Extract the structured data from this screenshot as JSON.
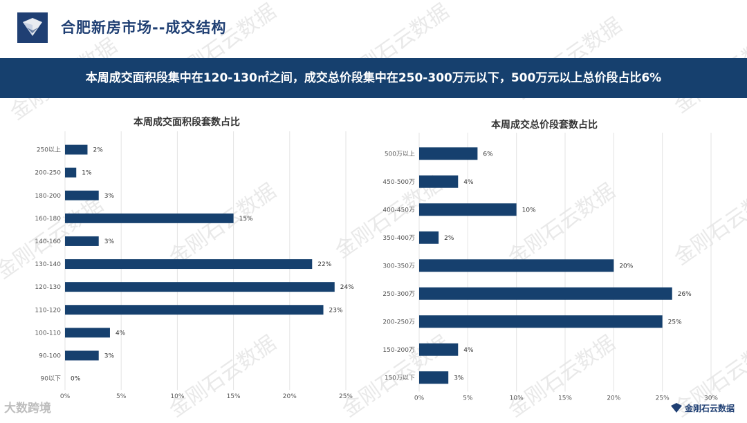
{
  "header": {
    "title": "合肥新房市场--成交结构",
    "banner": "本周成交面积段集中在120-130㎡之间，成交总价段集中在250-300万元以下，500万元以上总价段占比6%"
  },
  "watermark": "金刚石云数据",
  "footer": {
    "left_text": "大数跨境",
    "right_text": "金刚石云数据"
  },
  "colors": {
    "bar": "#16406e",
    "accent": "#1f3f73"
  },
  "chart_data": [
    {
      "type": "bar",
      "orientation": "horizontal",
      "title": "本周成交面积段套数占比",
      "categories": [
        "250以上",
        "200-250",
        "180-200",
        "160-180",
        "140-160",
        "130-140",
        "120-130",
        "110-120",
        "100-110",
        "90-100",
        "90以下"
      ],
      "values": [
        2,
        1,
        3,
        15,
        3,
        22,
        24,
        23,
        4,
        3,
        0
      ],
      "labels": [
        "2%",
        "1%",
        "3%",
        "15%",
        "3%",
        "22%",
        "24%",
        "23%",
        "4%",
        "3%",
        "0%"
      ],
      "xlim": [
        0,
        25
      ],
      "ticks": [
        "0%",
        "5%",
        "10%",
        "15%",
        "20%",
        "25%"
      ],
      "grid": true
    },
    {
      "type": "bar",
      "orientation": "horizontal",
      "title": "本周成交总价段套数占比",
      "categories": [
        "500万以上",
        "450-500万",
        "400-450万",
        "350-400万",
        "300-350万",
        "250-300万",
        "200-250万",
        "150-200万",
        "150万以下"
      ],
      "values": [
        6,
        4,
        10,
        2,
        20,
        26,
        25,
        4,
        3
      ],
      "labels": [
        "6%",
        "4%",
        "10%",
        "2%",
        "20%",
        "26%",
        "25%",
        "4%",
        "3%"
      ],
      "xlim": [
        0,
        30
      ],
      "ticks": [
        "0%",
        "5%",
        "10%",
        "15%",
        "20%",
        "25%",
        "30%"
      ],
      "grid": true
    }
  ]
}
